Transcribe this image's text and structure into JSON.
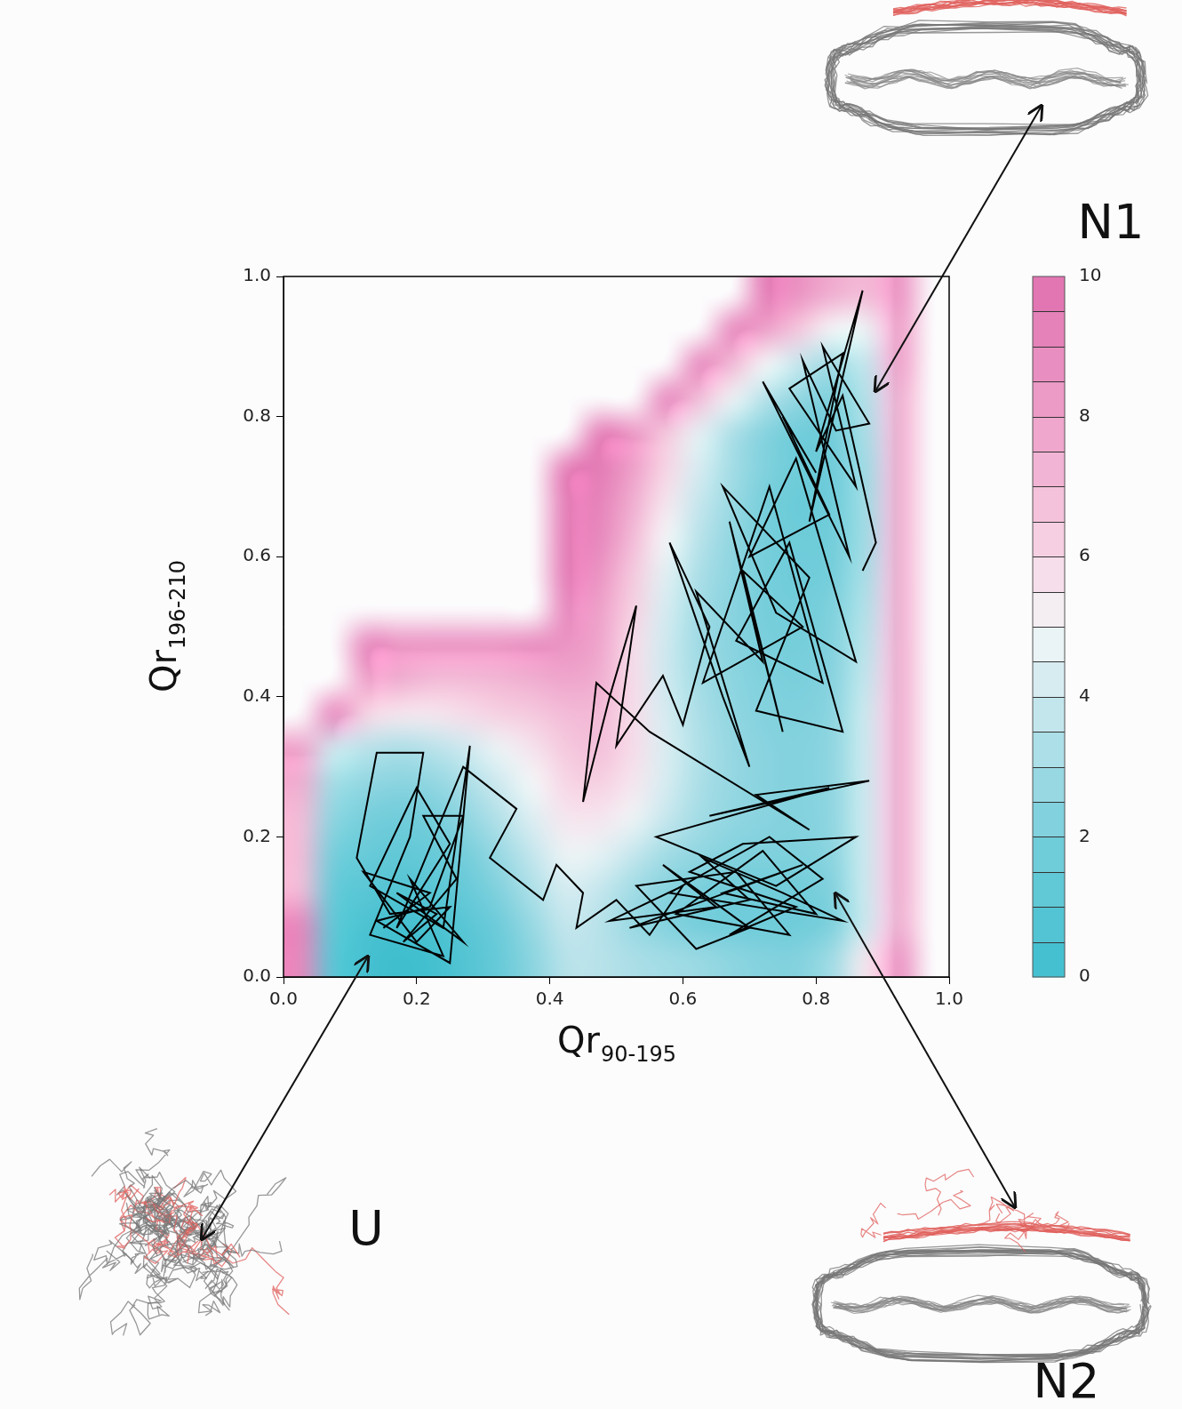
{
  "chart_data": {
    "type": "heatmap",
    "x_label": "Qr90-195",
    "y_label": "Qr196-210",
    "xlim": [
      0,
      1
    ],
    "ylim": [
      0,
      1
    ],
    "xticks": [
      {
        "value": 0,
        "label": "0.0"
      },
      {
        "value": 0.2,
        "label": "0.2"
      },
      {
        "value": 0.4,
        "label": "0.4"
      },
      {
        "value": 0.6,
        "label": "0.6"
      },
      {
        "value": 0.8,
        "label": "0.8"
      },
      {
        "value": 1,
        "label": "1.0"
      }
    ],
    "yticks": [
      {
        "value": 0,
        "label": "0.0"
      },
      {
        "value": 0.2,
        "label": "0.2"
      },
      {
        "value": 0.4,
        "label": "0.4"
      },
      {
        "value": 0.6,
        "label": "0.6"
      },
      {
        "value": 0.8,
        "label": "0.8"
      },
      {
        "value": 1,
        "label": "1.0"
      }
    ],
    "grid": false,
    "cells": {
      "x_edges": [
        0,
        0.05,
        0.1,
        0.15,
        0.2,
        0.25,
        0.3,
        0.35,
        0.4,
        0.45,
        0.5,
        0.55,
        0.6,
        0.65,
        0.7,
        0.75,
        0.8,
        0.85,
        0.9,
        0.95,
        1
      ],
      "y_edges": [
        0,
        0.05,
        0.1,
        0.15,
        0.2,
        0.25,
        0.3,
        0.35,
        0.4,
        0.45,
        0.5,
        0.55,
        0.6,
        0.65,
        0.7,
        0.75,
        0.8,
        0.85,
        0.9,
        0.95,
        1
      ],
      "values": [
        [
          9,
          1,
          0.3,
          0,
          0.2,
          0.8,
          1.5,
          2.5,
          3.5,
          3.5,
          3.2,
          3,
          2.8,
          2.5,
          2.3,
          2.3,
          3,
          5.5,
          8.5,
          null
        ],
        [
          9,
          1.2,
          0.5,
          0.3,
          0.5,
          1,
          1.8,
          2.8,
          3.8,
          3.5,
          2.8,
          2.3,
          2,
          1.8,
          1.8,
          1.8,
          2.2,
          4,
          7.5,
          null
        ],
        [
          7,
          1.5,
          1,
          0.8,
          1,
          1.5,
          2.3,
          3.3,
          4.2,
          3.8,
          3,
          2.4,
          2.1,
          1.9,
          1.9,
          1.9,
          2.3,
          4,
          7.5,
          null
        ],
        [
          7,
          2,
          1.5,
          1.3,
          1.5,
          2,
          2.8,
          3.8,
          4.8,
          4.6,
          3.8,
          3,
          2.6,
          2.3,
          2.2,
          2.2,
          2.5,
          4,
          7.5,
          null
        ],
        [
          7,
          2.5,
          2,
          1.8,
          2,
          2.6,
          3.4,
          4.4,
          5.5,
          5.5,
          4.8,
          3.8,
          3,
          2.6,
          2.4,
          2.3,
          2.6,
          4,
          7.5,
          null
        ],
        [
          7.5,
          3,
          2.6,
          2.4,
          2.6,
          3.2,
          4,
          5,
          6,
          6.2,
          5.5,
          4.2,
          3.2,
          2.7,
          2.4,
          2.3,
          2.6,
          4,
          7.5,
          null
        ],
        [
          8,
          4,
          3.5,
          3.2,
          3.5,
          4,
          4.8,
          5.6,
          6.5,
          6.8,
          5.8,
          4.3,
          3.3,
          2.7,
          2.4,
          2.3,
          2.6,
          4,
          7.5,
          null
        ],
        [
          null,
          9,
          6,
          5.5,
          5.5,
          5.8,
          6.2,
          6.5,
          7,
          7,
          5.8,
          4.2,
          3.2,
          2.6,
          2.3,
          2.2,
          2.5,
          4,
          7.5,
          null
        ],
        [
          null,
          null,
          8,
          7.5,
          7,
          7,
          7.2,
          7.5,
          7.8,
          7.5,
          5.8,
          4,
          3,
          2.5,
          2.2,
          2.1,
          2.4,
          3.8,
          7.5,
          null
        ],
        [
          null,
          null,
          9,
          8.5,
          8.5,
          8.5,
          8.5,
          8.8,
          8.5,
          7.8,
          5.8,
          4,
          2.9,
          2.4,
          2.1,
          2,
          2.3,
          3.6,
          7.5,
          null
        ],
        [
          null,
          null,
          null,
          null,
          null,
          null,
          null,
          null,
          9,
          8,
          6.2,
          4.2,
          3,
          2.4,
          2,
          1.9,
          2.2,
          3.4,
          7.5,
          null
        ],
        [
          null,
          null,
          null,
          null,
          null,
          null,
          null,
          null,
          9.5,
          8.5,
          6.5,
          4.5,
          3.2,
          2.5,
          2,
          1.8,
          2,
          3.2,
          7.5,
          null
        ],
        [
          null,
          null,
          null,
          null,
          null,
          null,
          null,
          null,
          9.5,
          9,
          7,
          5,
          3.5,
          2.6,
          2,
          1.7,
          1.9,
          3,
          7.5,
          null
        ],
        [
          null,
          null,
          null,
          null,
          null,
          null,
          null,
          null,
          9.5,
          9.2,
          7.5,
          5.5,
          3.8,
          2.8,
          2,
          1.6,
          1.8,
          3,
          7.5,
          null
        ],
        [
          null,
          null,
          null,
          null,
          null,
          null,
          null,
          null,
          9.5,
          9.5,
          8,
          6,
          4.2,
          3,
          2.2,
          1.7,
          1.8,
          3,
          7.5,
          null
        ],
        [
          null,
          null,
          null,
          null,
          null,
          null,
          null,
          null,
          null,
          9.5,
          8.5,
          6.5,
          4.6,
          3.2,
          2.3,
          1.8,
          1.9,
          3.2,
          7.5,
          null
        ],
        [
          null,
          null,
          null,
          null,
          null,
          null,
          null,
          null,
          null,
          null,
          null,
          9,
          6.8,
          4.8,
          3.4,
          2.6,
          2.2,
          3.4,
          7.5,
          null
        ],
        [
          null,
          null,
          null,
          null,
          null,
          null,
          null,
          null,
          null,
          null,
          null,
          null,
          9,
          7,
          5,
          3.8,
          3,
          3.8,
          8,
          null
        ],
        [
          null,
          null,
          null,
          null,
          null,
          null,
          null,
          null,
          null,
          null,
          null,
          null,
          null,
          9,
          8,
          6.5,
          5,
          4.8,
          8,
          null
        ],
        [
          null,
          null,
          null,
          null,
          null,
          null,
          null,
          null,
          null,
          null,
          null,
          null,
          null,
          null,
          9.5,
          8.5,
          7.5,
          7,
          8.5,
          null
        ]
      ]
    },
    "colorbar": {
      "range": [
        0,
        10
      ],
      "ticks": [
        0,
        2,
        4,
        6,
        8,
        10
      ]
    },
    "series": [
      {
        "type": "line",
        "color": "#000000",
        "x": [
          0.15,
          0.22,
          0.12,
          0.2,
          0.25,
          0.16,
          0.11,
          0.14,
          0.21,
          0.19,
          0.13,
          0.24,
          0.19,
          0.27,
          0.17,
          0.23,
          0.18,
          0.26,
          0.21,
          0.27,
          0.22,
          0.14,
          0.25,
          0.28,
          0.24,
          0.13,
          0.2,
          0.25,
          0.17,
          0.27,
          0.35,
          0.31,
          0.39,
          0.41,
          0.45,
          0.44,
          0.5,
          0.55,
          0.6,
          0.49,
          0.65,
          0.57,
          0.7,
          0.62,
          0.53,
          0.68,
          0.76,
          0.59,
          0.72,
          0.8,
          0.66,
          0.78,
          0.52,
          0.7,
          0.63,
          0.75,
          0.84,
          0.58,
          0.73,
          0.81,
          0.67,
          0.77,
          0.61,
          0.69,
          0.86,
          0.74,
          0.56,
          0.82,
          0.64,
          0.88,
          0.71,
          0.79,
          0.55,
          0.47,
          0.45,
          0.49,
          0.53,
          0.5,
          0.57,
          0.6,
          0.64,
          0.58,
          0.66,
          0.7,
          0.62,
          0.72,
          0.67,
          0.75,
          0.69,
          0.78,
          0.63,
          0.73,
          0.81,
          0.68,
          0.76,
          0.84,
          0.71,
          0.79,
          0.66,
          0.74,
          0.86,
          0.77,
          0.7,
          0.82,
          0.75,
          0.8,
          0.72,
          0.85,
          0.78,
          0.83,
          0.88,
          0.81,
          0.86,
          0.76,
          0.84,
          0.79,
          0.87,
          0.8,
          0.84,
          0.89,
          0.87
        ],
        "values": [
          0.07,
          0.12,
          0.15,
          0.05,
          0.1,
          0.09,
          0.17,
          0.32,
          0.32,
          0.2,
          0.06,
          0.03,
          0.14,
          0.05,
          0.12,
          0.09,
          0.05,
          0.14,
          0.23,
          0.23,
          0.1,
          0.08,
          0.02,
          0.33,
          0.07,
          0.13,
          0.27,
          0.19,
          0.07,
          0.3,
          0.24,
          0.17,
          0.11,
          0.16,
          0.12,
          0.07,
          0.11,
          0.06,
          0.13,
          0.08,
          0.1,
          0.16,
          0.07,
          0.04,
          0.13,
          0.15,
          0.06,
          0.09,
          0.18,
          0.09,
          0.12,
          0.16,
          0.07,
          0.11,
          0.17,
          0.12,
          0.08,
          0.12,
          0.2,
          0.14,
          0.06,
          0.1,
          0.15,
          0.19,
          0.2,
          0.13,
          0.2,
          0.27,
          0.23,
          0.28,
          0.26,
          0.21,
          0.35,
          0.42,
          0.25,
          0.4,
          0.53,
          0.33,
          0.43,
          0.36,
          0.5,
          0.62,
          0.4,
          0.3,
          0.55,
          0.45,
          0.65,
          0.35,
          0.58,
          0.5,
          0.42,
          0.7,
          0.42,
          0.48,
          0.62,
          0.35,
          0.38,
          0.57,
          0.7,
          0.52,
          0.45,
          0.74,
          0.6,
          0.66,
          0.8,
          0.72,
          0.85,
          0.6,
          0.88,
          0.78,
          0.79,
          0.9,
          0.7,
          0.84,
          0.89,
          0.65,
          0.98,
          0.75,
          0.83,
          0.62,
          0.58
        ]
      }
    ],
    "annotations": [
      "N1",
      "N2",
      "U"
    ]
  }
}
